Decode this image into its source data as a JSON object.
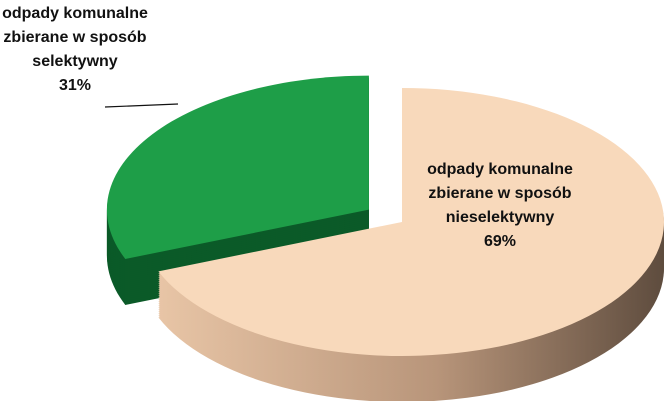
{
  "chart_data": {
    "type": "pie",
    "categories": [
      "odpady komunalne zbierane w sposób nieselektywny",
      "odpady komunalne zbierane w sposób selektywny"
    ],
    "values": [
      69,
      31
    ],
    "value_labels": [
      "69%",
      "31%"
    ],
    "colors": [
      "#f8d9bb",
      "#1e9e48"
    ],
    "side_colors": [
      "#b8957a",
      "#0b5a28"
    ],
    "exploded": [
      false,
      true
    ]
  }
}
